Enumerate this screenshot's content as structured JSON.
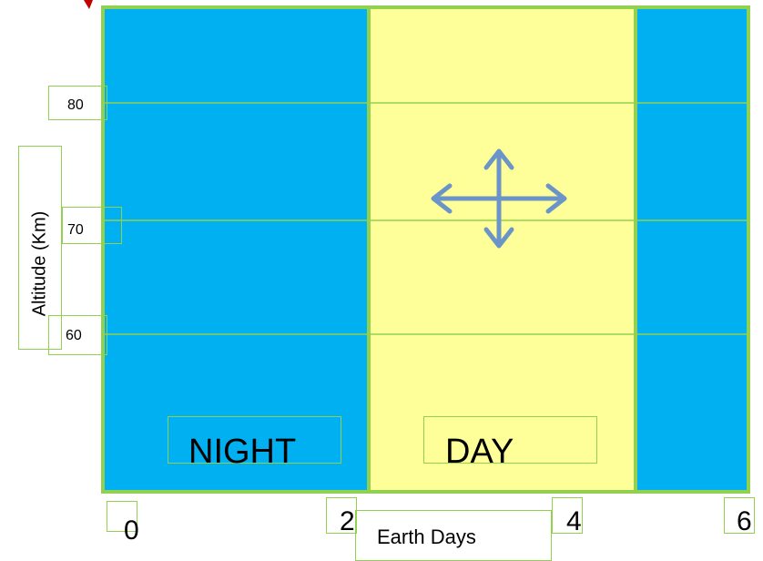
{
  "diagram": {
    "y_axis": {
      "title": "Altitude (Km)",
      "ticks": [
        "80",
        "70",
        "60"
      ]
    },
    "x_axis": {
      "title": "Earth Days",
      "ticks": [
        "0",
        "2",
        "4",
        "6"
      ]
    },
    "bands": [
      {
        "label": "NIGHT",
        "from": 0,
        "to": 2
      },
      {
        "label": "DAY",
        "from": 2,
        "to": 4
      },
      {
        "label": "",
        "from": 4,
        "to": 6
      }
    ],
    "icons": {
      "move": "four-way-arrow-icon"
    },
    "colors": {
      "night": "#00b0f0",
      "day": "#ffff99",
      "border": "#92d050",
      "arrow": "#6b95c9",
      "accent_red": "#c00000"
    }
  }
}
